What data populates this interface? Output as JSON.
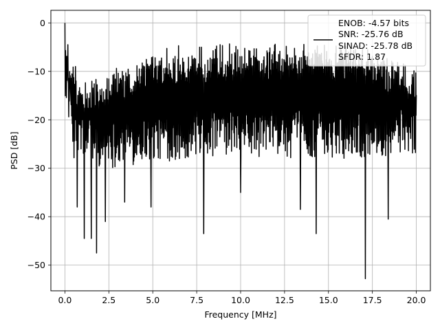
{
  "chart_data": {
    "type": "line",
    "xlabel": "Frequency [MHz]",
    "ylabel": "PSD [dB]",
    "xlim": [
      -0.8,
      20.8
    ],
    "ylim": [
      -55.3,
      2.6
    ],
    "xticks": [
      0.0,
      2.5,
      5.0,
      7.5,
      10.0,
      12.5,
      15.0,
      17.5,
      20.0
    ],
    "xtick_labels": [
      "0.0",
      "2.5",
      "5.0",
      "7.5",
      "10.0",
      "12.5",
      "15.0",
      "17.5",
      "20.0"
    ],
    "yticks": [
      0,
      -10,
      -20,
      -30,
      -40,
      -50
    ],
    "ytick_labels": [
      "0",
      "−10",
      "−20",
      "−30",
      "−40",
      "−50"
    ],
    "grid": true,
    "legend": {
      "placement": "top-right",
      "entries": [
        "ENOB: -4.57 bits",
        "SNR: -25.76 dB",
        "SINAD: -25.78 dB",
        "SFDR: 1.87"
      ]
    },
    "series": [
      {
        "color": "#000000",
        "x_range": [
          0,
          20
        ],
        "approx_upper_envelope": [
          [
            0,
            0
          ],
          [
            0.3,
            -7
          ],
          [
            1,
            -11
          ],
          [
            2.5,
            -10
          ],
          [
            5,
            -5
          ],
          [
            7.5,
            -4.5
          ],
          [
            10,
            -4
          ],
          [
            12.5,
            -4.5
          ],
          [
            15,
            -4
          ],
          [
            17.5,
            -5
          ],
          [
            20,
            -9
          ]
        ],
        "approx_lower_envelope": [
          [
            0,
            -15
          ],
          [
            0.5,
            -28
          ],
          [
            1,
            -29
          ],
          [
            2.5,
            -30
          ],
          [
            5,
            -29
          ],
          [
            7.5,
            -28
          ],
          [
            10,
            -28
          ],
          [
            12.5,
            -28
          ],
          [
            15,
            -28
          ],
          [
            17.5,
            -28
          ],
          [
            20,
            -27
          ]
        ],
        "notable_dips": [
          [
            0.7,
            -38
          ],
          [
            1.1,
            -44.5
          ],
          [
            1.5,
            -44.5
          ],
          [
            1.8,
            -47.5
          ],
          [
            2.3,
            -41
          ],
          [
            3.4,
            -37
          ],
          [
            4.9,
            -38
          ],
          [
            7.9,
            -43.5
          ],
          [
            10,
            -35
          ],
          [
            13.4,
            -38.5
          ],
          [
            14.3,
            -43.5
          ],
          [
            17.1,
            -52.8
          ],
          [
            18.4,
            -40.5
          ]
        ]
      }
    ]
  }
}
